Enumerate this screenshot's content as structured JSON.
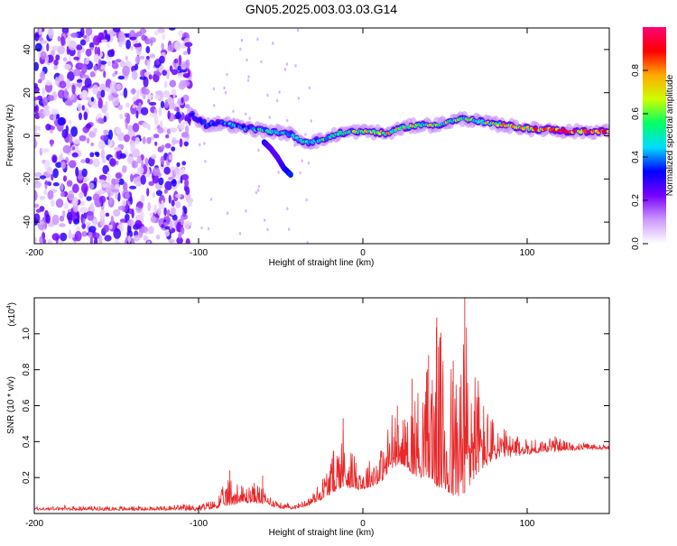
{
  "title": "GN05.2025.003.03.03.G14",
  "chart_data": [
    {
      "type": "heatmap",
      "xlabel": "Height of straight line (km)",
      "ylabel": "Frequency (Hz)",
      "xlim": [
        -200,
        150
      ],
      "ylim": [
        -50,
        50
      ],
      "xticks": [
        -200,
        -100,
        0,
        100
      ],
      "yticks": [
        -40,
        -20,
        0,
        20,
        40
      ],
      "colorbar": {
        "label": "Normalized spectral amplitude",
        "range": [
          0,
          1
        ],
        "ticks": [
          0.0,
          0.2,
          0.4,
          0.6,
          0.8
        ],
        "colors": [
          "#ffffff",
          "#cc99ff",
          "#7700ff",
          "#0000ff",
          "#00ddff",
          "#00ff66",
          "#ccff00",
          "#ffaa00",
          "#ff0000",
          "#ff0077"
        ]
      },
      "noise_region": {
        "x": [
          -200,
          -105
        ],
        "y": [
          -50,
          50
        ],
        "amplitude": 0.15
      },
      "ridge": {
        "x": [
          -105,
          -95,
          -85,
          -75,
          -65,
          -55,
          -45,
          -35,
          -25,
          -15,
          -5,
          5,
          15,
          25,
          35,
          45,
          55,
          62,
          75,
          85,
          95,
          105,
          115,
          125,
          135,
          150
        ],
        "freq": [
          10,
          5,
          6,
          4,
          3,
          2,
          1,
          -3,
          -2,
          1,
          2,
          2,
          1,
          4,
          5,
          5,
          7,
          8,
          6,
          5,
          4,
          3,
          3,
          2,
          2,
          2
        ],
        "amplitude": [
          0.3,
          0.35,
          0.35,
          0.45,
          0.45,
          0.55,
          0.4,
          0.5,
          0.5,
          0.55,
          0.55,
          0.65,
          0.7,
          0.65,
          0.6,
          0.6,
          0.6,
          0.55,
          0.65,
          0.7,
          0.75,
          0.8,
          0.85,
          0.9,
          0.85,
          0.8
        ]
      },
      "branch": {
        "x": [
          -60,
          -56,
          -52,
          -48,
          -44
        ],
        "freq": [
          -3,
          -6,
          -10,
          -15,
          -18
        ],
        "amplitude": [
          0.3,
          0.25,
          0.25,
          0.3,
          0.35
        ]
      }
    },
    {
      "type": "line",
      "xlabel": "Height of straight line (km)",
      "ylabel": "SNR (10 * v/v)",
      "y_multiplier": "(x10",
      "y_multiplier_exp": "4",
      "y_multiplier_close": ")",
      "xlim": [
        -200,
        150
      ],
      "ylim": [
        0,
        1.2
      ],
      "xticks": [
        -200,
        -100,
        0,
        100
      ],
      "yticks": [
        0.2,
        0.4,
        0.6,
        0.8,
        1.0
      ],
      "color": "#e8282a",
      "envelope": {
        "x": [
          -200,
          -130,
          -110,
          -100,
          -90,
          -80,
          -72,
          -65,
          -58,
          -50,
          -40,
          -32,
          -25,
          -18,
          -12,
          -5,
          0,
          5,
          12,
          18,
          22,
          26,
          30,
          35,
          40,
          45,
          50,
          55,
          60,
          63,
          68,
          73,
          80,
          90,
          100,
          110,
          117,
          125,
          135,
          150
        ],
        "base": [
          0.02,
          0.02,
          0.02,
          0.02,
          0.03,
          0.05,
          0.06,
          0.06,
          0.05,
          0.03,
          0.03,
          0.05,
          0.08,
          0.12,
          0.15,
          0.14,
          0.13,
          0.15,
          0.18,
          0.25,
          0.28,
          0.26,
          0.22,
          0.2,
          0.2,
          0.15,
          0.12,
          0.1,
          0.1,
          0.12,
          0.2,
          0.25,
          0.3,
          0.32,
          0.33,
          0.34,
          0.35,
          0.35,
          0.36,
          0.36
        ],
        "peak": [
          0.04,
          0.04,
          0.05,
          0.05,
          0.08,
          0.22,
          0.15,
          0.18,
          0.12,
          0.06,
          0.05,
          0.1,
          0.2,
          0.35,
          0.52,
          0.32,
          0.28,
          0.32,
          0.38,
          0.6,
          0.5,
          0.55,
          0.65,
          0.75,
          0.88,
          1.08,
          0.95,
          0.85,
          0.98,
          1.2,
          0.9,
          0.65,
          0.52,
          0.44,
          0.42,
          0.42,
          0.43,
          0.4,
          0.39,
          0.38
        ]
      }
    }
  ]
}
